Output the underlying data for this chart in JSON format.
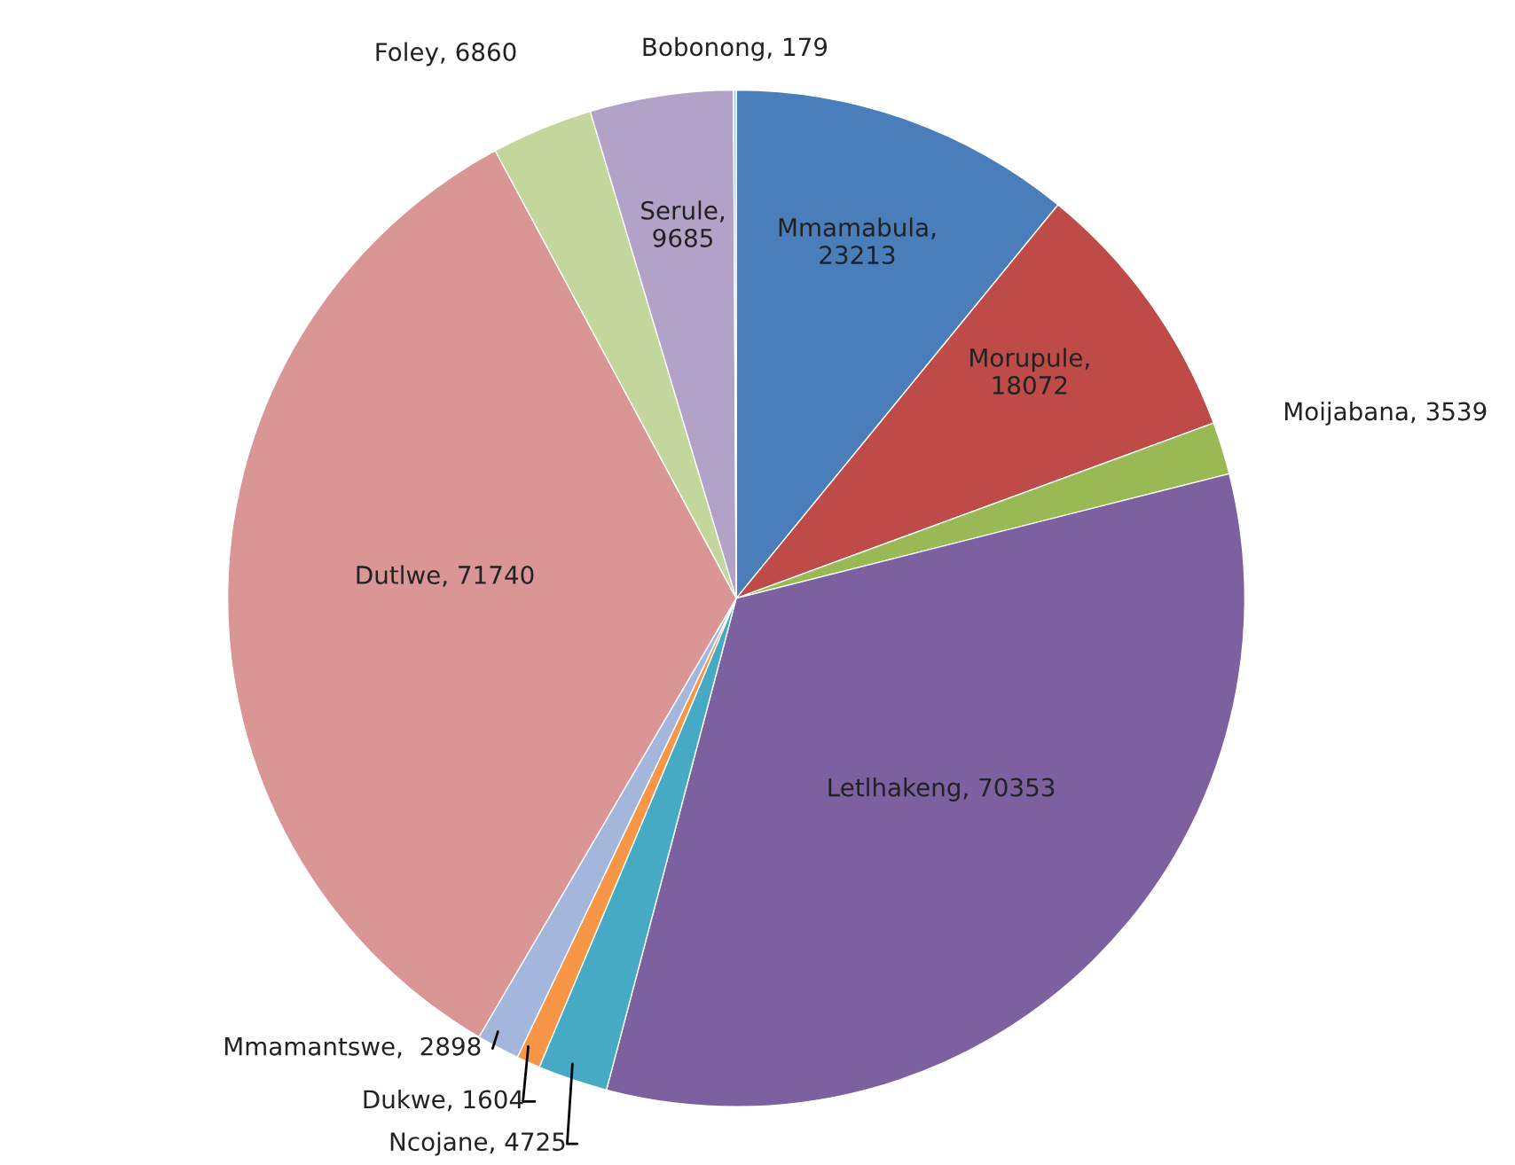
{
  "chart_data": {
    "type": "pie",
    "categories": [
      "Mmamabula, 23213",
      "Morupule, 18072",
      "Moijabana, 3539",
      "Letlhakeng, 70353",
      "Ncojane, 4725",
      "Dukwe, 1604",
      "Mmamantswe,  2898",
      "Dutlwe, 71740",
      "Foley, 6860",
      "Serule, 9685",
      "Bobonong, 179"
    ],
    "values": [
      23213,
      18072,
      3539,
      70353,
      4725,
      1604,
      2898,
      71740,
      6860,
      9685,
      179
    ],
    "colors": [
      "#4a7ebb",
      "#be4b48",
      "#98b954",
      "#7d60a0",
      "#46aac5",
      "#f79646",
      "#a5b6dc",
      "#d99694",
      "#c3d69b",
      "#b3a2c7",
      "#93cddd"
    ]
  }
}
